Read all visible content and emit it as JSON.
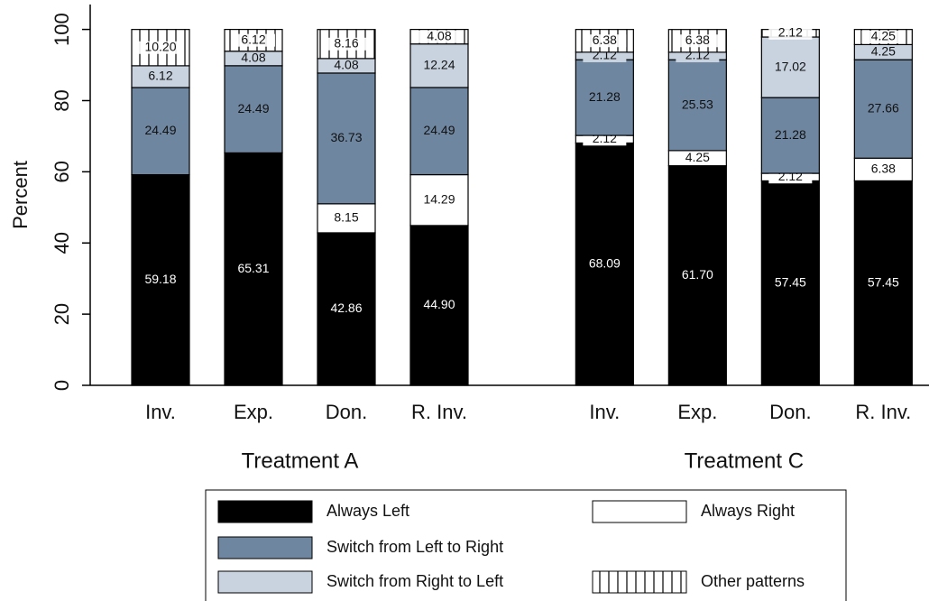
{
  "chart_data": {
    "type": "stacked-bar",
    "y_label": "Percent",
    "categories": [
      "Inv.",
      "Exp.",
      "Don.",
      "R. Inv.",
      "Inv.",
      "Exp.",
      "Don.",
      "R. Inv."
    ],
    "groups": [
      "Treatment A",
      "Treatment C"
    ],
    "ylim": [
      0,
      107
    ],
    "yticks": [
      0,
      20,
      40,
      60,
      80,
      100
    ],
    "series": [
      {
        "name": "Always Left",
        "color": "#000000",
        "label_color": "#ffffff",
        "values": [
          59.18,
          65.31,
          42.86,
          44.9,
          68.09,
          61.7,
          57.45,
          57.45
        ],
        "value_labels": [
          "59.18",
          "65.31",
          "42.86",
          "44.90",
          "68.09",
          "61.70",
          "57.45",
          "57.45"
        ]
      },
      {
        "name": "Always Right",
        "color": "#ffffff",
        "label_color": "#111111",
        "values": [
          0,
          0,
          8.15,
          14.29,
          2.12,
          4.25,
          2.12,
          6.38
        ],
        "value_labels": [
          null,
          null,
          "8.15",
          "14.29",
          "2.12",
          "4.25",
          "2.12",
          "6.38"
        ]
      },
      {
        "name": "Switch from Left to Right",
        "color": "#6f86a0",
        "label_color": "#111111",
        "values": [
          24.49,
          24.49,
          36.73,
          24.49,
          21.28,
          25.53,
          21.28,
          27.66
        ],
        "value_labels": [
          "24.49",
          "24.49",
          "36.73",
          "24.49",
          "21.28",
          "25.53",
          "21.28",
          "27.66"
        ]
      },
      {
        "name": "Switch from Right to Left",
        "color": "#c8d3df",
        "label_color": "#111111",
        "values": [
          6.12,
          4.08,
          4.08,
          12.24,
          2.12,
          2.12,
          17.02,
          4.25
        ],
        "value_labels": [
          "6.12",
          "4.08",
          "4.08",
          "12.24",
          "2.12",
          "2.12",
          "17.02",
          "4.25"
        ]
      },
      {
        "name": "Other patterns",
        "color": "#ffffff",
        "pattern": "vertical-lines",
        "label_color": "#111111",
        "values": [
          10.2,
          6.12,
          8.16,
          4.08,
          6.38,
          6.38,
          2.12,
          4.25
        ],
        "value_labels": [
          "10.20",
          "6.12",
          "8.16",
          "4.08",
          "6.38",
          "6.38",
          "2.12",
          "4.25"
        ]
      }
    ]
  }
}
